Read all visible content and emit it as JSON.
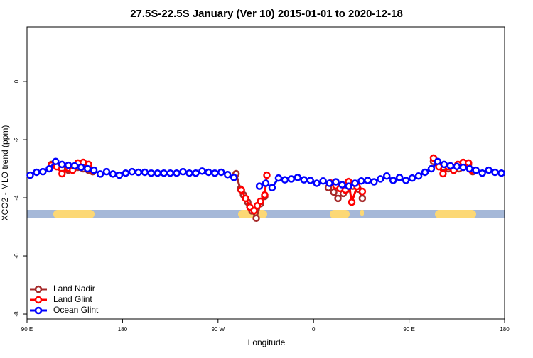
{
  "chart_data": {
    "type": "line",
    "title": "27.5S-22.5S January (Ver 10)   2015-01-01 to 2020-12-18",
    "x_label": "Longitude",
    "y_label": "XCO2 - MLO trend (ppm)",
    "xlim": [
      90,
      540
    ],
    "ylim": [
      -8.17,
      1.88
    ],
    "xticks": [
      {
        "value": 90,
        "label": "90 E"
      },
      {
        "value": 180,
        "label": "180"
      },
      {
        "value": 270,
        "label": "90 W"
      },
      {
        "value": 360,
        "label": "0"
      },
      {
        "value": 450,
        "label": "90 E"
      },
      {
        "value": 540,
        "label": "180"
      }
    ],
    "yticks": [
      0,
      -2,
      -4,
      -6,
      -8
    ],
    "legend": "bottom-left",
    "series": [
      {
        "name": "Land Nadir",
        "color": "#a52a2a",
        "x": [
          113,
          118,
          123,
          129,
          133,
          138,
          143,
          148,
          152,
          null,
          287,
          291,
          294,
          298,
          302,
          306,
          310,
          314,
          null,
          374,
          379,
          383,
          388,
          392,
          397,
          402,
          406,
          null,
          473,
          478,
          482,
          487,
          492,
          497,
          501,
          506,
          510
        ],
        "values": [
          -2.85,
          -2.9,
          -3.0,
          -3.05,
          -3.0,
          -2.95,
          -3.0,
          -3.05,
          -3.1,
          null,
          -3.17,
          -3.7,
          -3.9,
          -4.15,
          -4.45,
          -4.7,
          -4.2,
          -3.95,
          null,
          -3.65,
          -3.8,
          -4.02,
          -3.85,
          -3.7,
          -3.6,
          -3.7,
          -4.02,
          null,
          -2.75,
          -2.9,
          -2.95,
          -3.0,
          -3.05,
          -3.0,
          -2.95,
          -2.85,
          -3.1
        ]
      },
      {
        "name": "Land Glint",
        "color": "#ff0000",
        "x": [
          113,
          118,
          123,
          129,
          133,
          138,
          143,
          148,
          152,
          null,
          292,
          296,
          300,
          304,
          307,
          310,
          314,
          316,
          null,
          376,
          381,
          385,
          390,
          393,
          396,
          401,
          406,
          null,
          473,
          478,
          482,
          487,
          492,
          496,
          501,
          506,
          509
        ],
        "values": [
          -2.88,
          -2.93,
          -3.17,
          -2.98,
          -3.05,
          -2.8,
          -2.78,
          -2.85,
          -3.05,
          null,
          -3.73,
          -4.02,
          -4.32,
          -4.44,
          -4.27,
          -4.12,
          -3.9,
          -3.22,
          null,
          -3.49,
          -3.58,
          -3.68,
          -3.73,
          -3.44,
          -4.15,
          -3.61,
          -3.78,
          null,
          -2.63,
          -2.93,
          -3.17,
          -2.93,
          -3.05,
          -2.85,
          -2.78,
          -2.8,
          -3.05
        ]
      },
      {
        "name": "Ocean Glint",
        "color": "#0000ff",
        "x": [
          93,
          99,
          105,
          111,
          117,
          123,
          129,
          135,
          141,
          147,
          153,
          159,
          165,
          171,
          177,
          183,
          189,
          195,
          201,
          207,
          213,
          219,
          225,
          231,
          237,
          243,
          249,
          255,
          261,
          267,
          273,
          279,
          285,
          291,
          297,
          303,
          309,
          315,
          321,
          327,
          333,
          339,
          345,
          351,
          357,
          363,
          369,
          375,
          381,
          387,
          393,
          399,
          405,
          411,
          417,
          423,
          429,
          435,
          441,
          447,
          453,
          459,
          465,
          471,
          477,
          483,
          489,
          495,
          501,
          507,
          513,
          519,
          525,
          531,
          537
        ],
        "values": [
          -3.22,
          -3.12,
          -3.1,
          -3.0,
          -2.75,
          -2.85,
          -2.88,
          -2.9,
          -2.95,
          -3.0,
          -3.05,
          -3.18,
          -3.1,
          -3.18,
          -3.22,
          -3.15,
          -3.1,
          -3.12,
          -3.12,
          -3.15,
          -3.15,
          -3.15,
          -3.15,
          -3.15,
          -3.1,
          -3.15,
          -3.15,
          -3.08,
          -3.12,
          -3.15,
          -3.12,
          -3.2,
          -3.3,
          null,
          null,
          null,
          -3.6,
          -3.5,
          -3.65,
          -3.32,
          -3.38,
          -3.35,
          -3.3,
          -3.38,
          -3.4,
          -3.5,
          -3.42,
          -3.5,
          -3.45,
          -3.55,
          -3.6,
          -3.5,
          -3.42,
          -3.4,
          -3.45,
          -3.35,
          -3.25,
          -3.4,
          -3.3,
          -3.4,
          -3.32,
          -3.25,
          -3.12,
          -3.0,
          -2.75,
          -2.85,
          -2.9,
          -2.92,
          -2.95,
          -3.0,
          -3.05,
          -3.15,
          -3.05,
          -3.12,
          -3.15
        ]
      }
    ]
  }
}
